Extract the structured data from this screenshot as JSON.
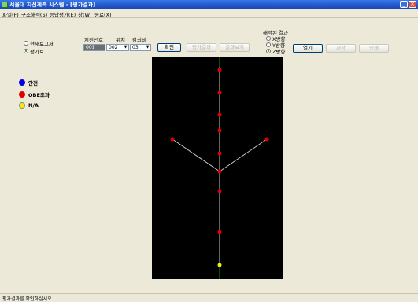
{
  "window": {
    "title": "서울대 지진계측 시스템 - [평가결과]"
  },
  "menu": [
    "파일(F)",
    "구조해석(S)",
    "응답평가(E)",
    "창(W)",
    "종료(X)"
  ],
  "view_mode": {
    "options": [
      "현재보고서",
      "평가보"
    ],
    "selected": 1
  },
  "sensor": {
    "header_label": "지진번호",
    "position_label": "위치",
    "sensor_id_label": "감쇠비",
    "number_value": "001",
    "position_value": "002",
    "sensor_value": "03",
    "confirm_label": "확인",
    "btn2_label": "평가결과",
    "btn3_label": "결과보기"
  },
  "axis_result": {
    "title": "해석된 결과",
    "options": [
      "X방향",
      "Y방향",
      "Z방향"
    ],
    "selected": 2,
    "open_label": "열기",
    "btn2_label": "저장",
    "btn3_label": "인쇄"
  },
  "legend": [
    {
      "label": "안전",
      "color": "#0000e0"
    },
    {
      "label": "OBE초과",
      "color": "#e00000"
    },
    {
      "label": "N/A",
      "color": "#f0f000"
    }
  ],
  "status": {
    "text": "평가결과를 확인하십시오."
  },
  "colors": {
    "member": "#c8c8c8",
    "guide": "#00c800",
    "node_exceed": "#e00000",
    "node_na": "#f0f000",
    "background": "#000000"
  }
}
